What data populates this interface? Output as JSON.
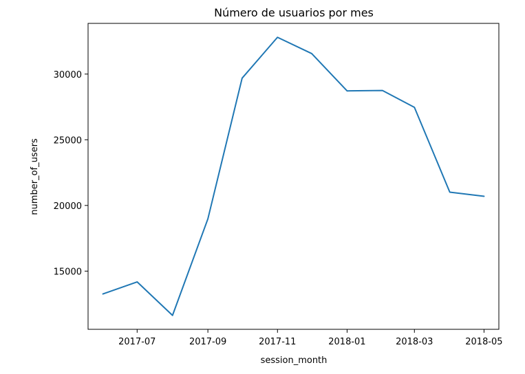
{
  "chart_data": {
    "type": "line",
    "title": "Número de usuarios por mes",
    "xlabel": "session_month",
    "ylabel": "number_of_users",
    "x": [
      "2017-06",
      "2017-07",
      "2017-08",
      "2017-09",
      "2017-10",
      "2017-11",
      "2017-12",
      "2018-01",
      "2018-02",
      "2018-03",
      "2018-04",
      "2018-05"
    ],
    "series": [
      {
        "values": [
          13260,
          14180,
          11630,
          18980,
          29690,
          32800,
          31560,
          28720,
          28750,
          27470,
          21010,
          20700
        ],
        "color": "#1f77b4"
      }
    ],
    "xticks": [
      "2017-07",
      "2017-09",
      "2017-11",
      "2018-01",
      "2018-03",
      "2018-05"
    ],
    "yticks": [
      15000,
      20000,
      25000,
      30000
    ],
    "xlim": [
      "2017-05-19",
      "2018-05-14"
    ],
    "ylim": [
      10570,
      33860
    ],
    "grid": false,
    "legend": "none"
  }
}
